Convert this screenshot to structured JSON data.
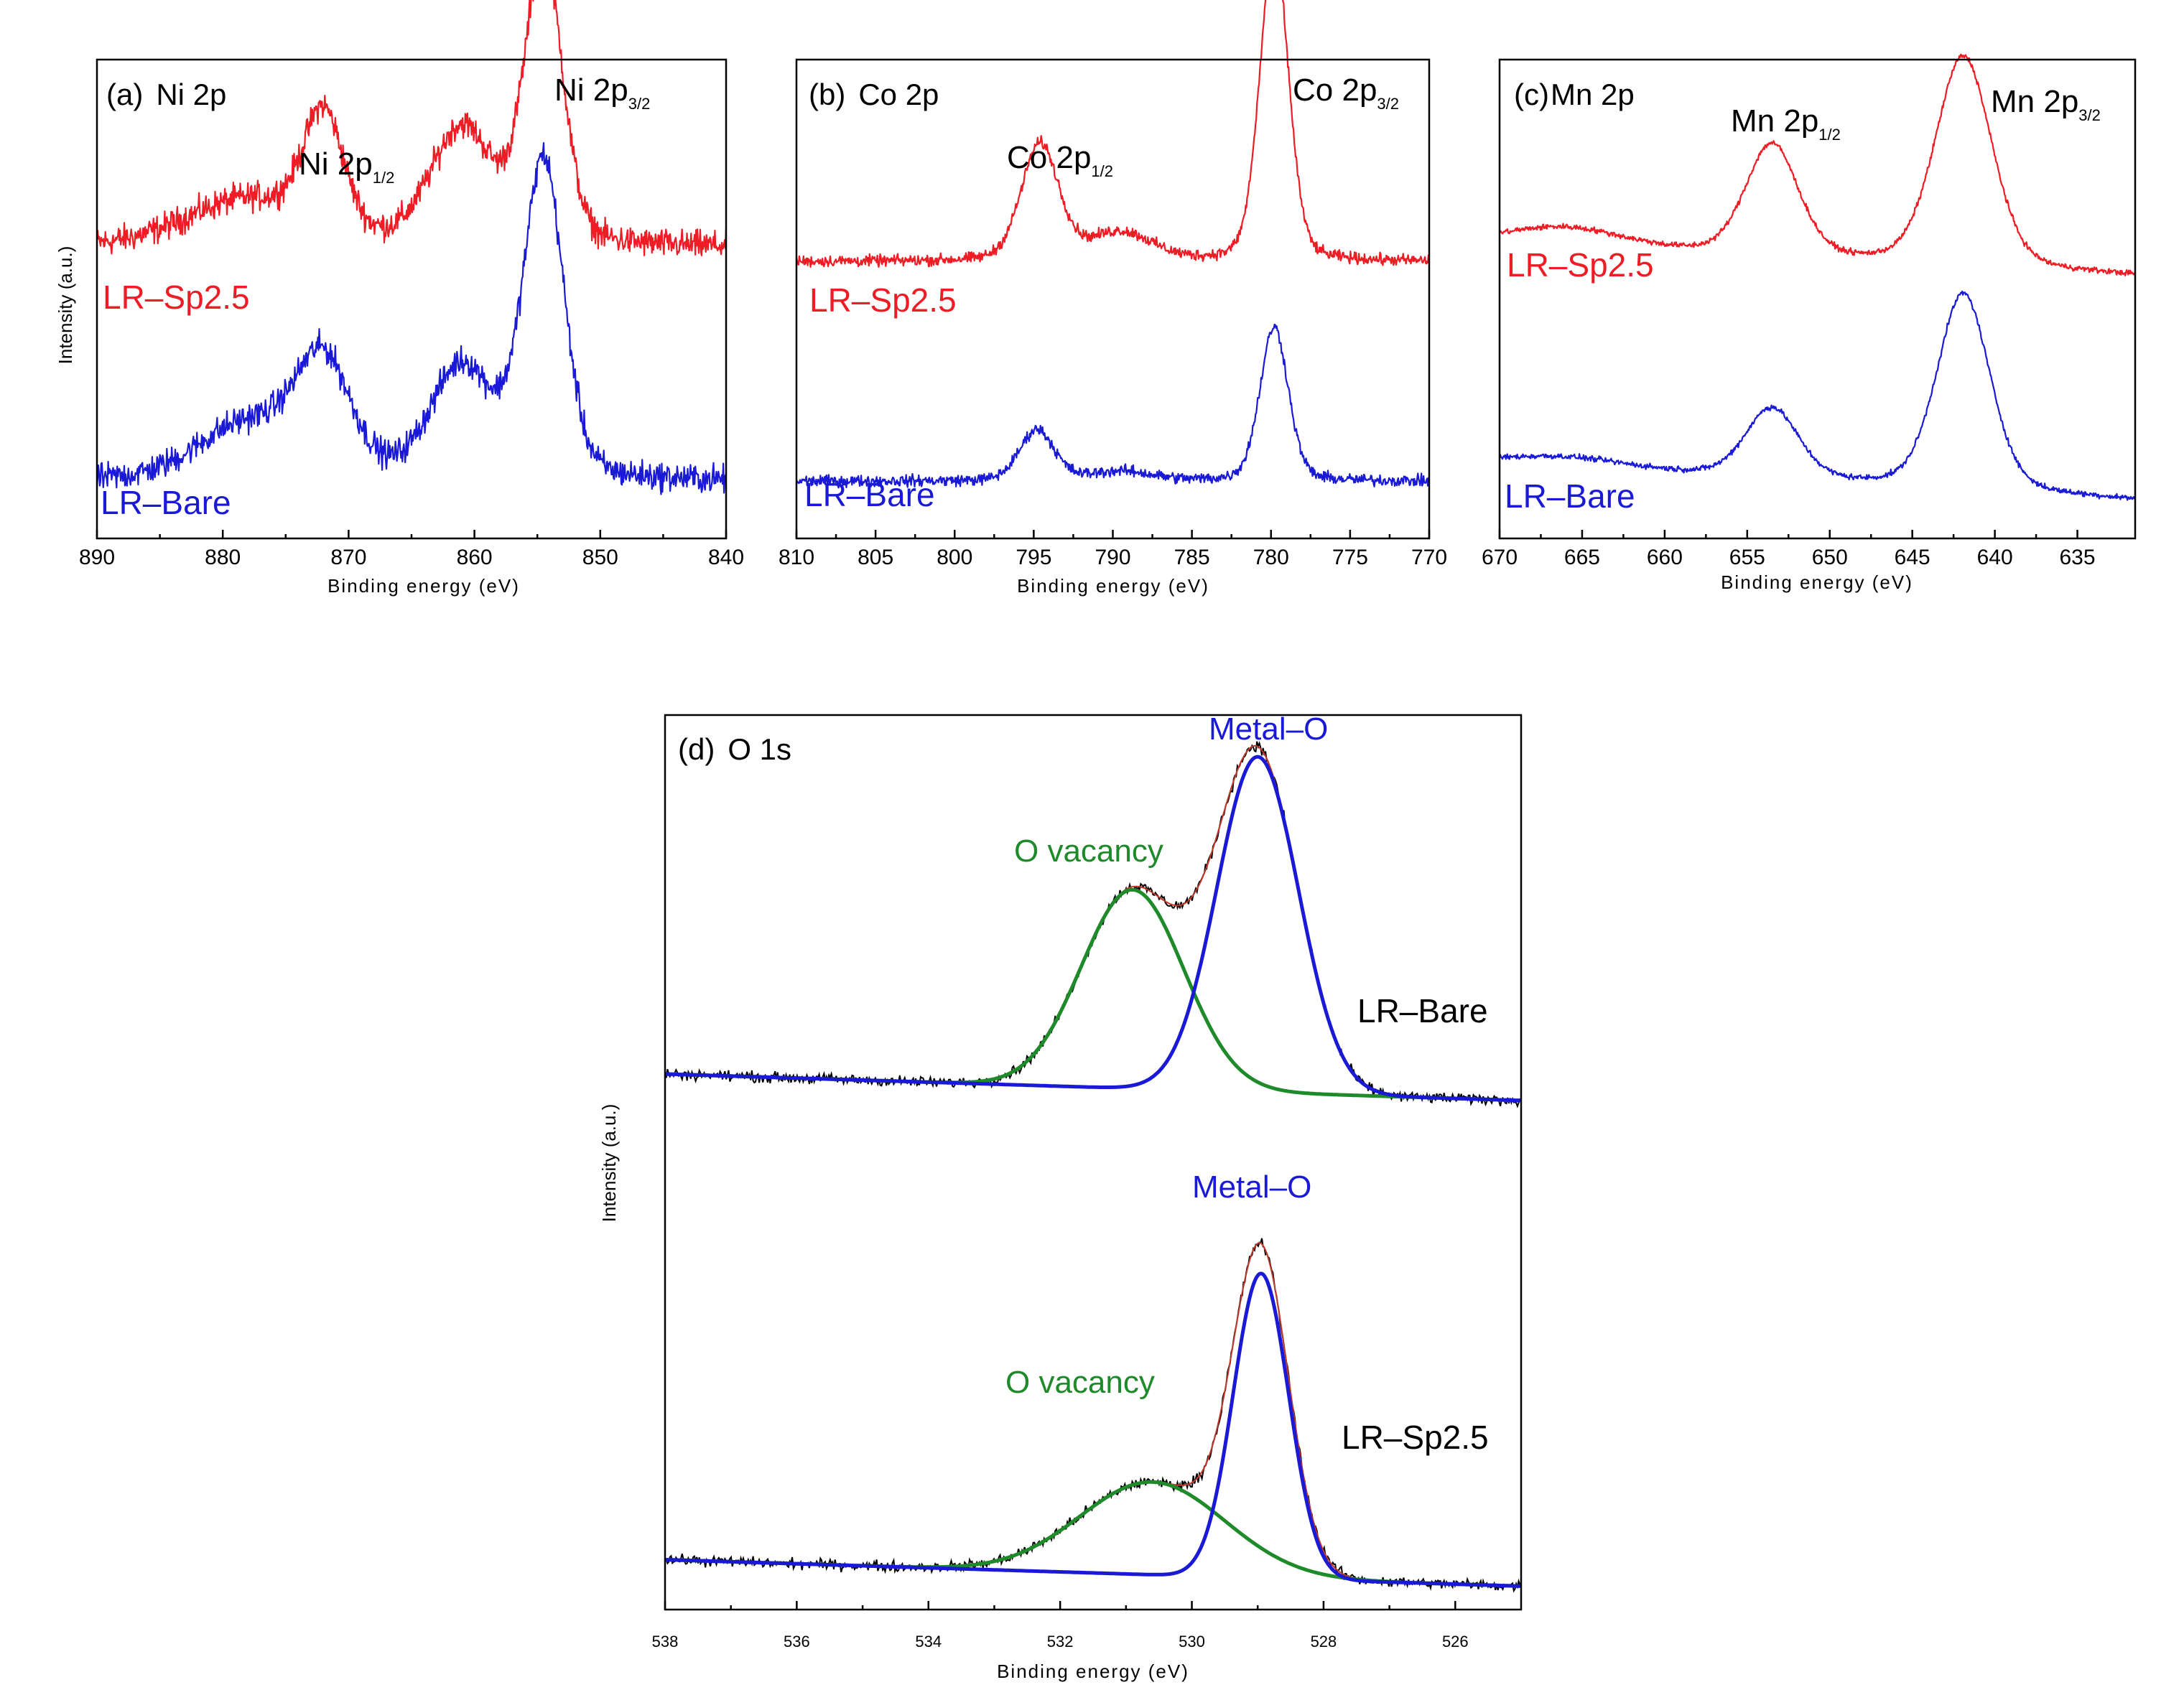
{
  "colors": {
    "red": "#ee1c25",
    "blue": "#1a1ad6",
    "green": "#1f8a2a",
    "black": "#000000",
    "envelope": "#c0392b"
  },
  "chart_data": [
    {
      "type": "line",
      "panel": "a",
      "title_tag": "(a)",
      "title": "Ni 2p",
      "xlabel": "Binding energy (eV)",
      "ylabel": "Intensity (a.u.)",
      "xlim": [
        890,
        840
      ],
      "x_reversed": true,
      "xticks": [
        890,
        880,
        870,
        860,
        850,
        840
      ],
      "xtick_labels": [
        "890",
        "880",
        "870",
        "860",
        "850",
        "840"
      ],
      "noise": 0.03,
      "peak_labels": [
        {
          "main": "Ni 2p",
          "sub": "1/2",
          "x": 872
        },
        {
          "main": "Ni 2p",
          "sub": "3/2",
          "x": 854
        }
      ],
      "series": [
        {
          "name": "LR–Sp2.5",
          "color_key": "red",
          "offset": 0.56,
          "base": [
            0.05,
            0.0
          ],
          "humps": [
            [
              878,
              0.1,
              5
            ],
            [
              872,
              0.25,
              1.6
            ],
            [
              861,
              0.25,
              2.5
            ],
            [
              854.5,
              0.62,
              1.5
            ]
          ]
        },
        {
          "name": "LR–Bare",
          "color_key": "blue",
          "offset": 0.06,
          "base": [
            0.05,
            0.0
          ],
          "humps": [
            [
              878,
              0.12,
              4
            ],
            [
              872,
              0.24,
              2.2
            ],
            [
              861,
              0.24,
              2.5
            ],
            [
              854.5,
              0.68,
              1.6
            ]
          ]
        }
      ]
    },
    {
      "type": "line",
      "panel": "b",
      "title_tag": "(b)",
      "title": "Co 2p",
      "xlabel": "Binding energy (eV)",
      "xlim": [
        810,
        770
      ],
      "x_reversed": true,
      "xticks": [
        810,
        805,
        800,
        795,
        790,
        785,
        780,
        775,
        770
      ],
      "xtick_labels": [
        "810",
        "805",
        "800",
        "795",
        "790",
        "785",
        "780",
        "775",
        "770"
      ],
      "noise": 0.012,
      "peak_labels": [
        {
          "main": "Co 2p",
          "sub": "1/2",
          "x": 794.6
        },
        {
          "main": "Co 2p",
          "sub": "3/2",
          "x": 779.8
        }
      ],
      "series": [
        {
          "name": "LR–Sp2.5",
          "color_key": "red",
          "offset": 0.56,
          "base": [
            0.02,
            0.0
          ],
          "humps": [
            [
              794.6,
              0.25,
              1.2
            ],
            [
              789.5,
              0.06,
              2.0
            ],
            [
              779.8,
              0.68,
              0.9
            ]
          ]
        },
        {
          "name": "LR–Bare",
          "color_key": "blue",
          "offset": 0.09,
          "base": [
            0.02,
            0.0
          ],
          "humps": [
            [
              794.8,
              0.11,
              1.1
            ],
            [
              789.5,
              0.02,
              2.0
            ],
            [
              779.8,
              0.33,
              0.9
            ]
          ]
        }
      ]
    },
    {
      "type": "line",
      "panel": "c",
      "title_tag": "(c)",
      "title": "Mn 2p",
      "xlabel": "Binding energy (eV)",
      "xlim": [
        670,
        631.5
      ],
      "x_reversed": true,
      "xticks": [
        670,
        665,
        660,
        655,
        650,
        645,
        640,
        635
      ],
      "xtick_labels": [
        "670",
        "665",
        "660",
        "655",
        "650",
        "645",
        "640",
        "635"
      ],
      "noise": 0.006,
      "peak_labels": [
        {
          "main": "Mn 2p",
          "sub": "1/2",
          "x": 653.5
        },
        {
          "main": "Mn 2p",
          "sub": "3/2",
          "x": 641.9
        }
      ],
      "series": [
        {
          "name": "LR–Sp2.5",
          "color_key": "red",
          "offset": 0.6,
          "base": [
            0.02,
            -0.07
          ],
          "humps": [
            [
              666,
              0.04,
              3.5
            ],
            [
              653.5,
              0.24,
              1.6
            ],
            [
              641.9,
              0.45,
              1.7
            ]
          ]
        },
        {
          "name": "LR–Bare",
          "color_key": "blue",
          "offset": 0.15,
          "base": [
            0.0,
            -0.08
          ],
          "humps": [
            [
              666,
              0.02,
              3.5
            ],
            [
              653.5,
              0.15,
              1.6
            ],
            [
              641.9,
              0.42,
              1.6
            ]
          ]
        }
      ]
    },
    {
      "type": "line",
      "panel": "d",
      "title_tag": "(d)",
      "title": "O 1s",
      "xlabel": "Binding energy (eV)",
      "ylabel": "Intensity (a.u.)",
      "xlim": [
        538,
        525
      ],
      "x_reversed": true,
      "xticks": [
        538,
        536,
        534,
        532,
        530,
        528,
        526
      ],
      "xtick_labels": [
        "538",
        "536",
        "534",
        "532",
        "530",
        "528",
        "526"
      ],
      "blocks": [
        {
          "sample": "LR–Bare",
          "offset": 0.57,
          "background": [
            0.03,
            0.0
          ],
          "components": [
            {
              "label": "O vacancy",
              "color_key": "green",
              "center": 530.9,
              "height": 0.225,
              "width": 0.78
            },
            {
              "label": "Metal–O",
              "color_key": "blue",
              "center": 529.0,
              "height": 0.38,
              "width": 0.62
            }
          ]
        },
        {
          "sample": "LR–Sp2.5",
          "offset": 0.02,
          "background": [
            0.03,
            0.0
          ],
          "components": [
            {
              "label": "O vacancy",
              "color_key": "green",
              "center": 530.6,
              "height": 0.105,
              "width": 1.1
            },
            {
              "label": "Metal–O",
              "color_key": "blue",
              "center": 528.95,
              "height": 0.345,
              "width": 0.42
            }
          ]
        }
      ]
    }
  ]
}
